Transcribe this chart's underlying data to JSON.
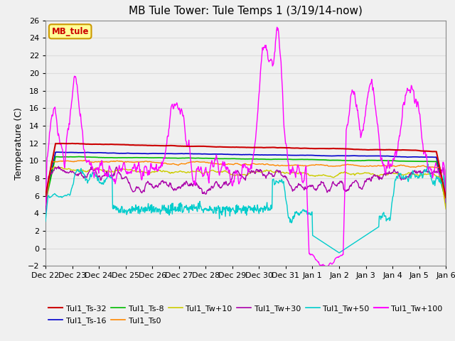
{
  "title": "MB Tule Tower: Tule Temps 1 (3/19/14-now)",
  "ylabel": "Temperature (C)",
  "ylim": [
    -2,
    26
  ],
  "yticks": [
    -2,
    0,
    2,
    4,
    6,
    8,
    10,
    12,
    14,
    16,
    18,
    20,
    22,
    24,
    26
  ],
  "xlabel_dates": [
    "Dec 22",
    "Dec 23",
    "Dec 24",
    "Dec 25",
    "Dec 26",
    "Dec 27",
    "Dec 28",
    "Dec 29",
    "Dec 30",
    "Dec 31",
    "Jan 1",
    "Jan 2",
    "Jan 3",
    "Jan 4",
    "Jan 5",
    "Jan 6"
  ],
  "series_colors": {
    "Tul1_Ts-32": "#cc0000",
    "Tul1_Ts-16": "#0000cc",
    "Tul1_Ts-8": "#00bb00",
    "Tul1_Ts0": "#ff8800",
    "Tul1_Tw+10": "#cccc00",
    "Tul1_Tw+30": "#aa00aa",
    "Tul1_Tw+50": "#00cccc",
    "Tul1_Tw+100": "#ff00ff"
  },
  "legend_box_facecolor": "#ffff99",
  "legend_box_edgecolor": "#cc9900",
  "bg_color": "#f0f0f0",
  "grid_color": "#dddddd"
}
